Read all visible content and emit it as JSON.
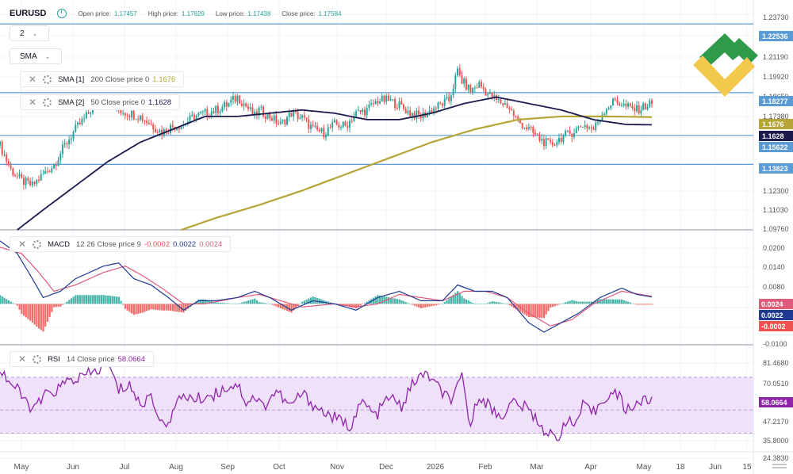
{
  "header": {
    "symbol": "EURUSD",
    "open_label": "Open price:",
    "open_value": "1.17457",
    "high_label": "High price:",
    "high_value": "1.17629",
    "low_label": "Low price:",
    "low_value": "1.17438",
    "close_label": "Close price:",
    "close_value": "1.17584"
  },
  "controls": {
    "interval": "2",
    "chart_type": "SMA"
  },
  "legends": {
    "sma1": {
      "name": "SMA [1]",
      "params": "200 Close price 0",
      "value": "1.1676"
    },
    "sma2": {
      "name": "SMA [2]",
      "params": "50 Close price 0",
      "value": "1.1628"
    },
    "macd": {
      "name": "MACD",
      "params": "12 26 Close price 9",
      "v1": "-0.0002",
      "v2": "0.0022",
      "v3": "0.0024"
    },
    "rsi": {
      "name": "RSI",
      "params": "14 Close price",
      "value": "58.0664"
    }
  },
  "colors": {
    "up": "#26a69a",
    "down": "#ef5350",
    "sma200": "#b5a537",
    "sma50": "#1a1a4e",
    "hline": "#5b9bd5",
    "macd_line": "#1f3a93",
    "signal_line": "#e05b7a",
    "rsi_line": "#8e24aa",
    "rsi_band": "#f0e1fa"
  },
  "price_axis": {
    "ticks": [
      "1.23730",
      "1.21190",
      "1.19920",
      "1.18650",
      "1.17380",
      "1.12300",
      "1.11030",
      "1.09760"
    ],
    "tags": [
      {
        "text": "1.22536",
        "kind": "hline"
      },
      {
        "text": "1.18277",
        "kind": "hline"
      },
      {
        "text": "1.1676",
        "kind": "sma200"
      },
      {
        "text": "1.1628",
        "kind": "sma50"
      },
      {
        "text": "1.15622",
        "kind": "hline"
      },
      {
        "text": "1.13823",
        "kind": "hline"
      }
    ]
  },
  "macd_axis": {
    "ticks": [
      "0.0200",
      "0.0140",
      "0.0080",
      "-0.0100"
    ],
    "tags": [
      {
        "text": "0.0024",
        "kind": "signal"
      },
      {
        "text": "0.0022",
        "kind": "macd"
      },
      {
        "text": "-0.0002",
        "kind": "hist"
      }
    ]
  },
  "rsi_axis": {
    "ticks": [
      "81.4680",
      "70.0510",
      "47.2170",
      "35.8000",
      "24.3830"
    ],
    "tag": "58.0664"
  },
  "time_axis": [
    "May",
    "Jun",
    "Jul",
    "Aug",
    "Sep",
    "Oct",
    "Nov",
    "Dec",
    "2026",
    "Feb",
    "Mar",
    "Apr",
    "May",
    "18",
    "Jun",
    "15"
  ],
  "chart_data": [
    {
      "type": "candlestick",
      "title": "EURUSD",
      "x_range": [
        "May",
        "15"
      ],
      "ylim": [
        1.0976,
        1.2373
      ],
      "price_lines": [
        1.22536,
        1.18277,
        1.15622,
        1.13823
      ],
      "close_anchors": [
        [
          0,
          1.15
        ],
        [
          5,
          1.135
        ],
        [
          10,
          1.128
        ],
        [
          15,
          1.125
        ],
        [
          20,
          1.132
        ],
        [
          25,
          1.138
        ],
        [
          30,
          1.15
        ],
        [
          35,
          1.16
        ],
        [
          40,
          1.168
        ],
        [
          45,
          1.178
        ],
        [
          50,
          1.178
        ],
        [
          55,
          1.172
        ],
        [
          60,
          1.17
        ],
        [
          65,
          1.168
        ],
        [
          70,
          1.163
        ],
        [
          75,
          1.158
        ],
        [
          80,
          1.162
        ],
        [
          85,
          1.163
        ],
        [
          90,
          1.168
        ],
        [
          95,
          1.17
        ],
        [
          100,
          1.172
        ],
        [
          105,
          1.175
        ],
        [
          110,
          1.18
        ],
        [
          113,
          1.176
        ],
        [
          118,
          1.168
        ],
        [
          120,
          1.172
        ],
        [
          125,
          1.168
        ],
        [
          130,
          1.163
        ],
        [
          135,
          1.17
        ],
        [
          140,
          1.167
        ],
        [
          145,
          1.16
        ],
        [
          150,
          1.158
        ],
        [
          155,
          1.163
        ],
        [
          160,
          1.162
        ],
        [
          165,
          1.17
        ],
        [
          170,
          1.172
        ],
        [
          175,
          1.178
        ],
        [
          180,
          1.178
        ],
        [
          185,
          1.175
        ],
        [
          190,
          1.17
        ],
        [
          195,
          1.168
        ],
        [
          200,
          1.172
        ],
        [
          205,
          1.176
        ],
        [
          208,
          1.178
        ],
        [
          212,
          1.196
        ],
        [
          214,
          1.19
        ],
        [
          218,
          1.184
        ],
        [
          222,
          1.188
        ],
        [
          226,
          1.182
        ],
        [
          230,
          1.178
        ],
        [
          235,
          1.175
        ],
        [
          240,
          1.165
        ],
        [
          245,
          1.16
        ],
        [
          250,
          1.154
        ],
        [
          255,
          1.15
        ],
        [
          260,
          1.155
        ],
        [
          265,
          1.158
        ],
        [
          270,
          1.163
        ],
        [
          275,
          1.16
        ],
        [
          280,
          1.172
        ],
        [
          285,
          1.178
        ],
        [
          290,
          1.174
        ],
        [
          295,
          1.172
        ],
        [
          300,
          1.175
        ],
        [
          302,
          1.176
        ]
      ],
      "series": [
        {
          "name": "SMA [1]",
          "anchors": [
            [
              84,
              1.0976
            ],
            [
              100,
              1.105
            ],
            [
              120,
              1.113
            ],
            [
              140,
              1.122
            ],
            [
              160,
              1.132
            ],
            [
              180,
              1.142
            ],
            [
              200,
              1.152
            ],
            [
              220,
              1.16
            ],
            [
              240,
              1.166
            ],
            [
              260,
              1.168
            ],
            [
              280,
              1.168
            ],
            [
              302,
              1.1676
            ]
          ]
        },
        {
          "name": "SMA [2]",
          "anchors": [
            [
              8,
              1.0976
            ],
            [
              20,
              1.11
            ],
            [
              35,
              1.125
            ],
            [
              50,
              1.14
            ],
            [
              65,
              1.152
            ],
            [
              80,
              1.16
            ],
            [
              95,
              1.168
            ],
            [
              110,
              1.168
            ],
            [
              125,
              1.17
            ],
            [
              140,
              1.172
            ],
            [
              155,
              1.17
            ],
            [
              170,
              1.166
            ],
            [
              185,
              1.166
            ],
            [
              200,
              1.17
            ],
            [
              215,
              1.176
            ],
            [
              230,
              1.18
            ],
            [
              245,
              1.176
            ],
            [
              260,
              1.172
            ],
            [
              275,
              1.166
            ],
            [
              290,
              1.163
            ],
            [
              302,
              1.1628
            ]
          ]
        }
      ]
    },
    {
      "type": "line",
      "title": "MACD",
      "ylim": [
        -0.012,
        0.022
      ],
      "series": [
        {
          "name": "MACD",
          "anchors": [
            [
              0,
              0.02
            ],
            [
              8,
              0.016
            ],
            [
              15,
              0.008
            ],
            [
              20,
              0.002
            ],
            [
              28,
              0.004
            ],
            [
              35,
              0.008
            ],
            [
              48,
              0.012
            ],
            [
              55,
              0.013
            ],
            [
              62,
              0.008
            ],
            [
              70,
              0.006
            ],
            [
              78,
              0.002
            ],
            [
              85,
              -0.002
            ],
            [
              92,
              0.001
            ],
            [
              100,
              0.001
            ],
            [
              110,
              0.002
            ],
            [
              118,
              0.004
            ],
            [
              125,
              0.002
            ],
            [
              135,
              -0.002
            ],
            [
              145,
              0.001
            ],
            [
              155,
              0.0
            ],
            [
              165,
              -0.002
            ],
            [
              175,
              0.002
            ],
            [
              185,
              0.004
            ],
            [
              195,
              0.001
            ],
            [
              205,
              0.001
            ],
            [
              212,
              0.006
            ],
            [
              220,
              0.004
            ],
            [
              228,
              0.004
            ],
            [
              235,
              0.002
            ],
            [
              245,
              -0.006
            ],
            [
              252,
              -0.009
            ],
            [
              260,
              -0.006
            ],
            [
              268,
              -0.003
            ],
            [
              278,
              0.002
            ],
            [
              288,
              0.005
            ],
            [
              295,
              0.003
            ],
            [
              302,
              0.0022
            ]
          ]
        },
        {
          "name": "Signal",
          "anchors": [
            [
              0,
              0.018
            ],
            [
              10,
              0.016
            ],
            [
              18,
              0.01
            ],
            [
              25,
              0.004
            ],
            [
              35,
              0.006
            ],
            [
              48,
              0.01
            ],
            [
              58,
              0.012
            ],
            [
              66,
              0.009
            ],
            [
              75,
              0.005
            ],
            [
              85,
              0.0
            ],
            [
              95,
              0.0
            ],
            [
              110,
              0.002
            ],
            [
              120,
              0.003
            ],
            [
              130,
              0.001
            ],
            [
              140,
              -0.001
            ],
            [
              155,
              0.0
            ],
            [
              165,
              -0.001
            ],
            [
              175,
              0.0
            ],
            [
              185,
              0.003
            ],
            [
              195,
              0.002
            ],
            [
              205,
              0.001
            ],
            [
              215,
              0.004
            ],
            [
              225,
              0.004
            ],
            [
              235,
              0.002
            ],
            [
              245,
              -0.003
            ],
            [
              255,
              -0.007
            ],
            [
              265,
              -0.005
            ],
            [
              275,
              0.0
            ],
            [
              288,
              0.004
            ],
            [
              302,
              0.0024
            ]
          ]
        }
      ],
      "histogram_values": {
        "name": "Histogram",
        "last": -0.0002
      }
    },
    {
      "type": "line",
      "title": "RSI",
      "ylim": [
        24.383,
        86.0
      ],
      "bands": [
        35.8,
        70.051
      ],
      "series": [
        {
          "name": "RSI",
          "anchors": [
            [
              0,
              75
            ],
            [
              4,
              68
            ],
            [
              8,
              62
            ],
            [
              12,
              55
            ],
            [
              16,
              50
            ],
            [
              20,
              58
            ],
            [
              26,
              62
            ],
            [
              32,
              68
            ],
            [
              38,
              70
            ],
            [
              45,
              74
            ],
            [
              50,
              78
            ],
            [
              55,
              62
            ],
            [
              60,
              66
            ],
            [
              65,
              52
            ],
            [
              70,
              60
            ],
            [
              75,
              40
            ],
            [
              80,
              48
            ],
            [
              85,
              60
            ],
            [
              90,
              56
            ],
            [
              95,
              58
            ],
            [
              100,
              60
            ],
            [
              105,
              64
            ],
            [
              110,
              66
            ],
            [
              114,
              55
            ],
            [
              118,
              58
            ],
            [
              122,
              52
            ],
            [
              128,
              62
            ],
            [
              134,
              52
            ],
            [
              140,
              60
            ],
            [
              148,
              50
            ],
            [
              155,
              45
            ],
            [
              162,
              40
            ],
            [
              168,
              55
            ],
            [
              174,
              46
            ],
            [
              180,
              58
            ],
            [
              186,
              52
            ],
            [
              192,
              68
            ],
            [
              198,
              72
            ],
            [
              205,
              60
            ],
            [
              210,
              56
            ],
            [
              214,
              70
            ],
            [
              218,
              40
            ],
            [
              222,
              60
            ],
            [
              228,
              50
            ],
            [
              232,
              46
            ],
            [
              238,
              55
            ],
            [
              245,
              50
            ],
            [
              250,
              42
            ],
            [
              254,
              35
            ],
            [
              258,
              32
            ],
            [
              262,
              44
            ],
            [
              266,
              40
            ],
            [
              270,
              52
            ],
            [
              275,
              48
            ],
            [
              280,
              58
            ],
            [
              286,
              60
            ],
            [
              290,
              50
            ],
            [
              295,
              54
            ],
            [
              300,
              56
            ],
            [
              302,
              58.0664
            ]
          ]
        }
      ]
    }
  ]
}
